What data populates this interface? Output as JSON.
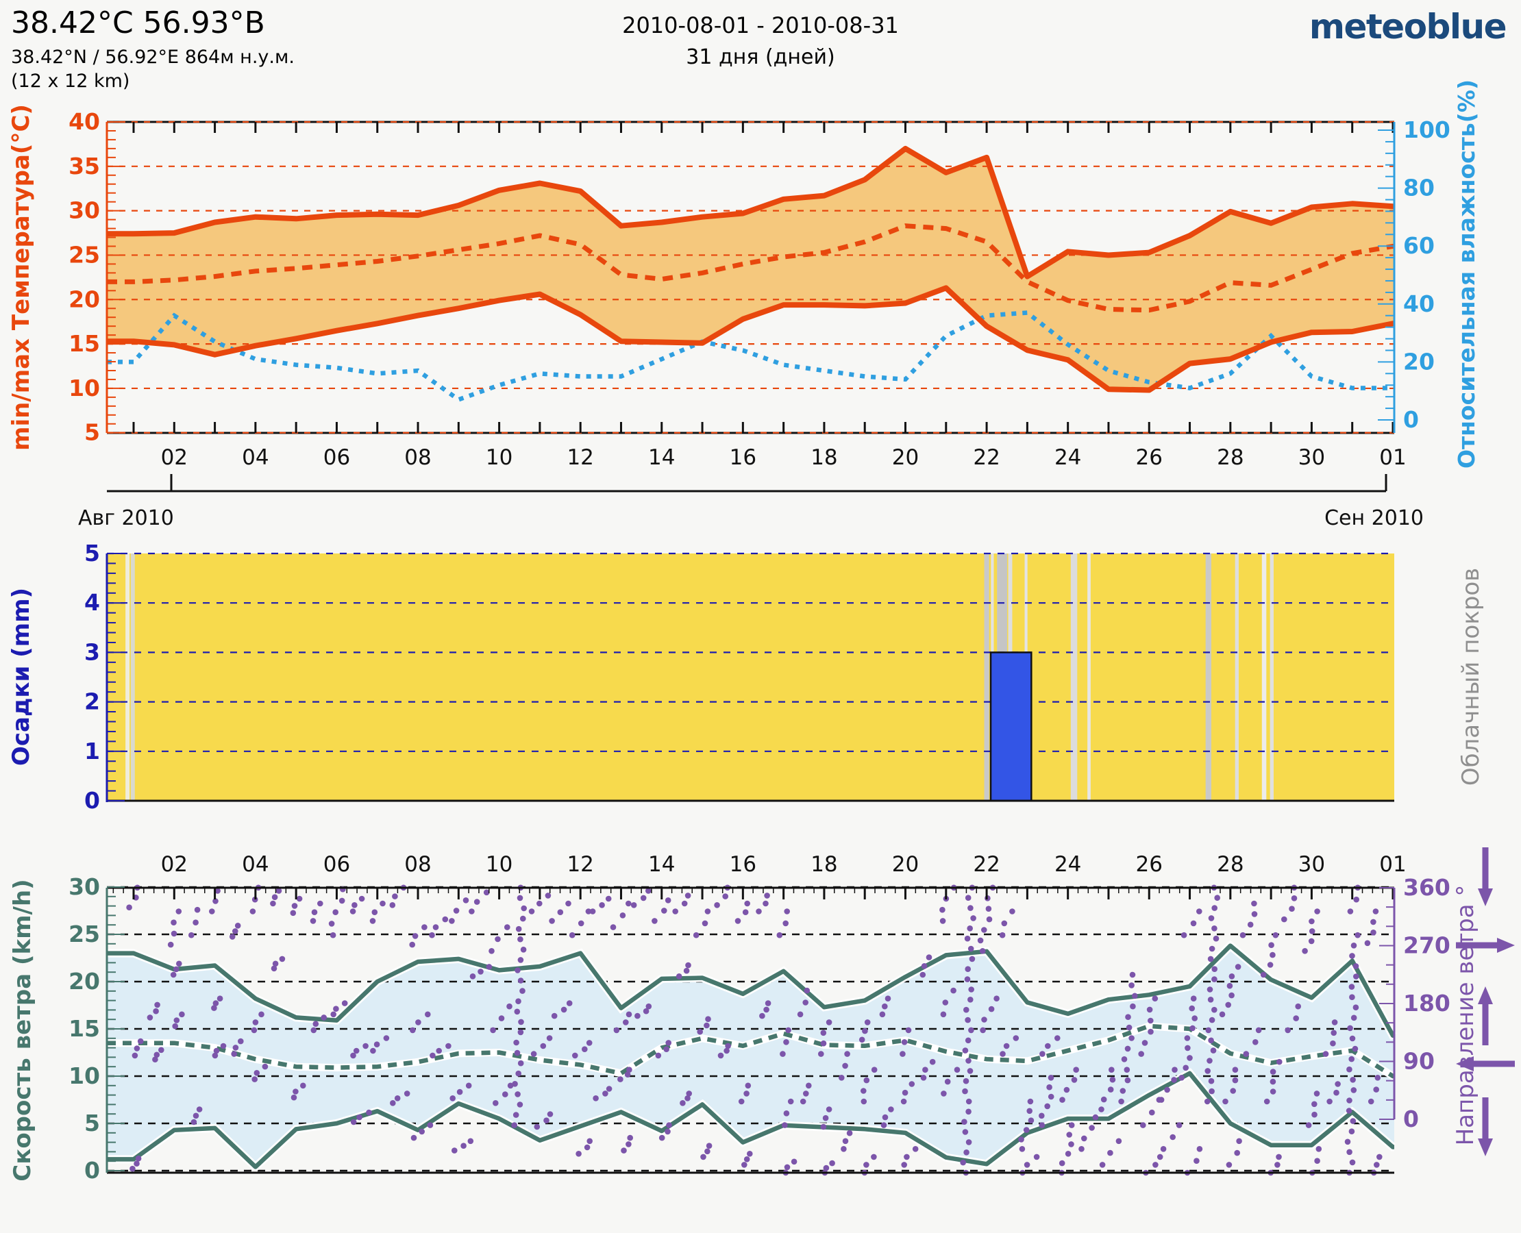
{
  "header": {
    "title": "38.42°С 56.93°В",
    "subtitle": "38.42°N / 56.92°E   864м н.у.м.",
    "resolution": "(12 x 12 km)",
    "date_range": "2010-08-01 - 2010-08-31",
    "duration": "31 дня (дней)",
    "logo_text": "meteoblue",
    "logo_color": "#1b4a7c"
  },
  "x_axis": {
    "tick_days": [
      2,
      4,
      6,
      8,
      10,
      12,
      14,
      16,
      18,
      20,
      22,
      24,
      26,
      28,
      30,
      32
    ],
    "tick_labels": [
      "02",
      "04",
      "06",
      "08",
      "10",
      "12",
      "14",
      "16",
      "18",
      "20",
      "22",
      "24",
      "26",
      "28",
      "30",
      "01"
    ],
    "month_left": "Авг 2010",
    "month_right": "Сен 2010"
  },
  "chart_data": [
    {
      "type": "area",
      "name": "temperature_humidity",
      "ylabel_left": "min/max Температура(°C)",
      "ylabel_right": "Относительная влажность(%)",
      "ylim_left": [
        5,
        40
      ],
      "ylim_right": [
        0,
        100
      ],
      "yticks_left": [
        5,
        10,
        15,
        20,
        25,
        30,
        35,
        40
      ],
      "yticks_right": [
        0,
        20,
        40,
        60,
        80,
        100
      ],
      "x_days_start": 1,
      "month_labels": {
        "left": "Авг 2010",
        "right": "Сен 2010"
      },
      "colors": {
        "line": "#e8470d",
        "band": "#f5c87d",
        "humidity": "#2f9fe0",
        "frame": "#111111"
      },
      "series": [
        {
          "name": "t_max",
          "color": "#e8470d",
          "style": "solid",
          "values": [
            27.4,
            27.5,
            28.7,
            29.3,
            29.1,
            29.5,
            29.6,
            29.5,
            30.6,
            32.3,
            33.1,
            32.2,
            28.3,
            28.7,
            29.3,
            29.7,
            31.3,
            31.7,
            33.5,
            37.0,
            34.3,
            36.0,
            22.6,
            25.4,
            25.0,
            25.3,
            27.2,
            29.9,
            28.6,
            30.4,
            30.8,
            30.5
          ]
        },
        {
          "name": "t_mean",
          "color": "#e8470d",
          "style": "dashed",
          "values": [
            22.0,
            22.2,
            22.6,
            23.2,
            23.5,
            23.9,
            24.3,
            24.9,
            25.6,
            26.3,
            27.2,
            26.2,
            22.8,
            22.3,
            23.0,
            24.0,
            24.8,
            25.3,
            26.5,
            28.3,
            28.0,
            26.5,
            22.0,
            19.9,
            18.9,
            18.8,
            19.8,
            21.9,
            21.6,
            23.4,
            25.2,
            26.0
          ]
        },
        {
          "name": "t_min",
          "color": "#e8470d",
          "style": "solid",
          "values": [
            15.3,
            14.9,
            13.8,
            14.8,
            15.6,
            16.5,
            17.3,
            18.2,
            19.0,
            19.9,
            20.6,
            18.3,
            15.3,
            15.2,
            15.1,
            17.8,
            19.4,
            19.4,
            19.3,
            19.6,
            21.3,
            17.0,
            14.3,
            13.2,
            9.9,
            9.8,
            12.8,
            13.3,
            15.2,
            16.3,
            16.4,
            17.3
          ]
        },
        {
          "name": "rel_humidity_pct",
          "color": "#2f9fe0",
          "style": "dotted",
          "axis": "right",
          "values": [
            20,
            36,
            27,
            21,
            19,
            18,
            16,
            17,
            7,
            12,
            16,
            15,
            15,
            21,
            27,
            24,
            19,
            17,
            15,
            14,
            29,
            36,
            37,
            26,
            17,
            13,
            11,
            16,
            29,
            15,
            11,
            11
          ]
        }
      ]
    },
    {
      "type": "bar",
      "name": "precipitation_cloudcover",
      "ylabel_left": "Осадки (mm)",
      "ylabel_right": "Облачный покров",
      "ylim": [
        0,
        5
      ],
      "yticks": [
        0,
        1,
        2,
        3,
        4,
        5
      ],
      "colors": {
        "axis": "#1c1cb0",
        "background": "#f7da4d",
        "bar": "#3355e6",
        "cloud_label": "#8f8f8f"
      },
      "bars": [
        {
          "day_start": 22.1,
          "day_end": 23.1,
          "value_mm": 3.0
        }
      ],
      "cloud_stripes": [
        {
          "day": 0.85,
          "w": 0.1,
          "color": "#efeddc"
        },
        {
          "day": 0.98,
          "w": 0.1,
          "color": "#d9d9cf"
        },
        {
          "day": 22.0,
          "w": 0.12,
          "color": "#c9c9c9"
        },
        {
          "day": 22.14,
          "w": 0.07,
          "color": "#e2e2e2"
        },
        {
          "day": 22.38,
          "w": 0.25,
          "color": "#c5c5c5"
        },
        {
          "day": 22.58,
          "w": 0.1,
          "color": "#dedede"
        },
        {
          "day": 22.97,
          "w": 0.07,
          "color": "#e4e4e4"
        },
        {
          "day": 24.15,
          "w": 0.16,
          "color": "#dcdcdc"
        },
        {
          "day": 24.52,
          "w": 0.08,
          "color": "#e6e6e6"
        },
        {
          "day": 27.46,
          "w": 0.14,
          "color": "#c9c9c9"
        },
        {
          "day": 28.16,
          "w": 0.09,
          "color": "#dedede"
        },
        {
          "day": 28.83,
          "w": 0.11,
          "color": "#ececec"
        },
        {
          "day": 29.02,
          "w": 0.09,
          "color": "#e0e0e0"
        }
      ]
    },
    {
      "type": "area",
      "name": "wind",
      "ylabel_left": "Скорость ветра (km/h)",
      "ylabel_right": "Направление ветра °",
      "ylim_left": [
        0,
        30
      ],
      "ylim_right": [
        0,
        360
      ],
      "yticks_left": [
        0,
        5,
        10,
        15,
        20,
        25,
        30
      ],
      "yticks_right": [
        0,
        90,
        180,
        270,
        360
      ],
      "colors": {
        "line": "#47776d",
        "band": "#ddedf6",
        "direction": "#7c55aa",
        "frame": "#111111"
      },
      "series": [
        {
          "name": "wind_max",
          "color": "#47776d",
          "style": "solid",
          "values": [
            23.0,
            21.3,
            21.7,
            18.2,
            16.2,
            15.9,
            20.0,
            22.1,
            22.4,
            21.2,
            21.6,
            23.0,
            17.2,
            20.3,
            20.4,
            18.7,
            21.1,
            17.3,
            18.0,
            20.5,
            22.8,
            23.2,
            17.8,
            16.6,
            18.1,
            18.6,
            19.5,
            23.8,
            20.2,
            18.3,
            22.2,
            14.3
          ]
        },
        {
          "name": "wind_mean",
          "color": "#47776d",
          "style": "dashed",
          "values": [
            13.5,
            13.5,
            13.0,
            11.8,
            11.0,
            10.9,
            11.0,
            11.5,
            12.4,
            12.5,
            11.7,
            11.2,
            10.3,
            13.0,
            14.0,
            13.2,
            14.5,
            13.3,
            13.2,
            13.8,
            12.6,
            11.8,
            11.6,
            12.7,
            13.8,
            15.3,
            15.0,
            12.4,
            11.4,
            12.1,
            12.7,
            10.0
          ]
        },
        {
          "name": "wind_min",
          "color": "#47776d",
          "style": "solid",
          "values": [
            1.2,
            4.3,
            4.5,
            0.4,
            4.4,
            5.0,
            6.3,
            4.3,
            7.1,
            5.5,
            3.2,
            4.7,
            6.2,
            4.2,
            7.0,
            3.0,
            4.8,
            4.6,
            4.4,
            4.0,
            1.4,
            0.7,
            4.0,
            5.5,
            5.5,
            8.0,
            10.3,
            5.0,
            2.7,
            2.7,
            6.2,
            2.5
          ]
        }
      ],
      "direction_arrows": [
        "down",
        "right",
        "up",
        "left",
        "down"
      ],
      "direction_streaks": [
        [
          1.0,
          335,
          360
        ],
        [
          1.05,
          5,
          18
        ],
        [
          1.1,
          148,
          166
        ],
        [
          1.5,
          196,
          212
        ],
        [
          1.6,
          143,
          155
        ],
        [
          2.0,
          288,
          330
        ],
        [
          2.05,
          250,
          264
        ],
        [
          2.1,
          185,
          200
        ],
        [
          2.5,
          300,
          332
        ],
        [
          2.55,
          64,
          80
        ],
        [
          3.0,
          330,
          356
        ],
        [
          3.05,
          208,
          220
        ],
        [
          3.1,
          148,
          160
        ],
        [
          3.5,
          298,
          312
        ],
        [
          3.55,
          150,
          166
        ],
        [
          4.0,
          330,
          360
        ],
        [
          4.05,
          180,
          200
        ],
        [
          4.1,
          118,
          134
        ],
        [
          4.5,
          340,
          356
        ],
        [
          4.55,
          258,
          270
        ],
        [
          5.0,
          328,
          346
        ],
        [
          5.05,
          95,
          110
        ],
        [
          5.5,
          318,
          340
        ],
        [
          5.55,
          180,
          196
        ],
        [
          6.0,
          300,
          358
        ],
        [
          6.05,
          200,
          214
        ],
        [
          6.5,
          330,
          346
        ],
        [
          6.55,
          148,
          160
        ],
        [
          6.6,
          64,
          76
        ],
        [
          7.0,
          318,
          340
        ],
        [
          7.05,
          154,
          170
        ],
        [
          7.5,
          338,
          360
        ],
        [
          7.55,
          88,
          100
        ],
        [
          8.0,
          288,
          310
        ],
        [
          8.05,
          180,
          200
        ],
        [
          8.1,
          44,
          60
        ],
        [
          8.5,
          300,
          320
        ],
        [
          8.55,
          148,
          160
        ],
        [
          9.0,
          318,
          344
        ],
        [
          9.05,
          94,
          110
        ],
        [
          9.1,
          28,
          40
        ],
        [
          9.5,
          330,
          354
        ],
        [
          9.55,
          248,
          260
        ],
        [
          10.0,
          280,
          310
        ],
        [
          10.05,
          180,
          210
        ],
        [
          10.1,
          88,
          110
        ],
        [
          10.5,
          60,
          360
        ],
        [
          11.0,
          330,
          350
        ],
        [
          11.05,
          150,
          170
        ],
        [
          11.1,
          58,
          74
        ],
        [
          11.5,
          318,
          340
        ],
        [
          11.55,
          198,
          214
        ],
        [
          12.0,
          300,
          330
        ],
        [
          12.05,
          148,
          164
        ],
        [
          12.1,
          24,
          40
        ],
        [
          12.5,
          330,
          346
        ],
        [
          12.55,
          94,
          106
        ],
        [
          13.0,
          310,
          340
        ],
        [
          13.05,
          180,
          200
        ],
        [
          13.1,
          118,
          130
        ],
        [
          13.15,
          28,
          44
        ],
        [
          13.5,
          338,
          356
        ],
        [
          13.55,
          198,
          210
        ],
        [
          14.0,
          318,
          344
        ],
        [
          14.05,
          148,
          164
        ],
        [
          14.1,
          44,
          60
        ],
        [
          14.5,
          330,
          350
        ],
        [
          14.55,
          248,
          262
        ],
        [
          14.6,
          88,
          100
        ],
        [
          15.0,
          300,
          330
        ],
        [
          15.05,
          178,
          194
        ],
        [
          15.1,
          20,
          34
        ],
        [
          15.5,
          338,
          360
        ],
        [
          15.55,
          148,
          160
        ],
        [
          16.0,
          318,
          340
        ],
        [
          16.05,
          90,
          110
        ],
        [
          16.1,
          10,
          24
        ],
        [
          16.5,
          330,
          350
        ],
        [
          16.55,
          198,
          214
        ],
        [
          17.0,
          300,
          330
        ],
        [
          17.05,
          150,
          180
        ],
        [
          17.1,
          60,
          90
        ],
        [
          17.15,
          0,
          14
        ],
        [
          17.5,
          200,
          230
        ],
        [
          17.55,
          90,
          110
        ],
        [
          18.0,
          150,
          190
        ],
        [
          18.05,
          58,
          80
        ],
        [
          18.1,
          0,
          12
        ],
        [
          18.5,
          120,
          150
        ],
        [
          18.55,
          30,
          50
        ],
        [
          19.0,
          168,
          190
        ],
        [
          19.05,
          90,
          130
        ],
        [
          19.1,
          0,
          20
        ],
        [
          19.5,
          200,
          220
        ],
        [
          19.55,
          60,
          80
        ],
        [
          20.0,
          150,
          180
        ],
        [
          20.05,
          90,
          112
        ],
        [
          20.1,
          10,
          30
        ],
        [
          20.5,
          250,
          272
        ],
        [
          20.55,
          120,
          140
        ],
        [
          21.0,
          318,
          360
        ],
        [
          21.05,
          200,
          230
        ],
        [
          21.1,
          100,
          130
        ],
        [
          21.55,
          0,
          360
        ],
        [
          22.0,
          280,
          360
        ],
        [
          22.05,
          180,
          220
        ],
        [
          22.5,
          300,
          330
        ],
        [
          22.55,
          150,
          170
        ],
        [
          23.0,
          30,
          90
        ],
        [
          23.05,
          0,
          20
        ],
        [
          23.5,
          60,
          120
        ],
        [
          23.55,
          150,
          170
        ],
        [
          24.0,
          0,
          60
        ],
        [
          24.05,
          92,
          130
        ],
        [
          24.5,
          30,
          70
        ],
        [
          25.0,
          80,
          130
        ],
        [
          25.05,
          10,
          40
        ],
        [
          25.5,
          90,
          250
        ],
        [
          26.0,
          150,
          220
        ],
        [
          26.05,
          60,
          92
        ],
        [
          26.1,
          0,
          20
        ],
        [
          26.5,
          92,
          130
        ],
        [
          26.55,
          30,
          60
        ],
        [
          27.0,
          120,
          220
        ],
        [
          27.05,
          300,
          330
        ],
        [
          27.1,
          0,
          30
        ],
        [
          27.55,
          90,
          360
        ],
        [
          28.0,
          200,
          260
        ],
        [
          28.05,
          90,
          130
        ],
        [
          28.1,
          10,
          40
        ],
        [
          28.5,
          300,
          340
        ],
        [
          28.55,
          150,
          180
        ],
        [
          29.0,
          250,
          300
        ],
        [
          29.05,
          90,
          140
        ],
        [
          29.1,
          0,
          20
        ],
        [
          29.5,
          320,
          360
        ],
        [
          29.55,
          180,
          210
        ],
        [
          30.0,
          280,
          330
        ],
        [
          30.05,
          60,
          100
        ],
        [
          30.1,
          0,
          30
        ],
        [
          30.5,
          150,
          190
        ],
        [
          30.55,
          90,
          112
        ],
        [
          31.0,
          0,
          300
        ],
        [
          31.05,
          330,
          360
        ],
        [
          31.5,
          290,
          330
        ],
        [
          31.55,
          90,
          120
        ],
        [
          31.6,
          0,
          20
        ]
      ]
    }
  ]
}
